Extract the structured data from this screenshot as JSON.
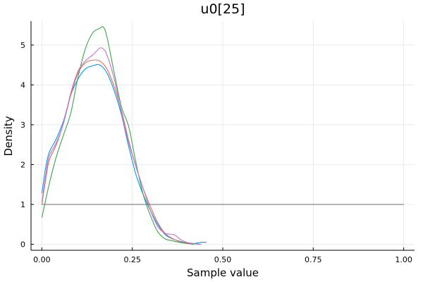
{
  "chart_data": {
    "type": "line",
    "title": "u0[25]",
    "xlabel": "Sample value",
    "ylabel": "Density",
    "xlim": [
      -0.03,
      1.03
    ],
    "ylim": [
      -0.15,
      5.6
    ],
    "grid": true,
    "legend": "none",
    "x_ticks": [
      0.0,
      0.25,
      0.5,
      0.75,
      1.0
    ],
    "x_tick_labels": [
      "0.00",
      "0.25",
      "0.50",
      "0.75",
      "1.00"
    ],
    "y_ticks": [
      0,
      1,
      2,
      3,
      4,
      5
    ],
    "y_tick_labels": [
      "0",
      "1",
      "2",
      "3",
      "4",
      "5"
    ],
    "series": [
      {
        "color": "#009AFA",
        "x": [
          0.0,
          0.01,
          0.02,
          0.04,
          0.06,
          0.08,
          0.1,
          0.12,
          0.14,
          0.16,
          0.18,
          0.2,
          0.22,
          0.24,
          0.26,
          0.28,
          0.3,
          0.32,
          0.34,
          0.36,
          0.38,
          0.4,
          0.42,
          0.44,
          0.455
        ],
        "y": [
          1.28,
          1.9,
          2.3,
          2.65,
          3.1,
          3.75,
          4.15,
          4.4,
          4.48,
          4.5,
          4.3,
          3.85,
          3.25,
          2.45,
          1.75,
          1.25,
          0.85,
          0.5,
          0.25,
          0.14,
          0.08,
          0.04,
          0.02,
          0.05,
          0.05
        ]
      },
      {
        "color": "#E36F47",
        "x": [
          0.0,
          0.01,
          0.02,
          0.04,
          0.06,
          0.08,
          0.1,
          0.12,
          0.14,
          0.16,
          0.18,
          0.2,
          0.22,
          0.24,
          0.26,
          0.28,
          0.3,
          0.32,
          0.34,
          0.36,
          0.38,
          0.4,
          0.42,
          0.44
        ],
        "y": [
          1.0,
          1.6,
          2.1,
          2.5,
          3.05,
          3.75,
          4.3,
          4.55,
          4.62,
          4.6,
          4.4,
          3.95,
          3.35,
          2.6,
          1.95,
          1.4,
          0.95,
          0.55,
          0.28,
          0.15,
          0.07,
          0.03,
          0.01,
          0.0
        ]
      },
      {
        "color": "#3EA44E",
        "x": [
          0.0,
          0.02,
          0.04,
          0.06,
          0.08,
          0.1,
          0.12,
          0.14,
          0.16,
          0.17,
          0.18,
          0.2,
          0.22,
          0.24,
          0.26,
          0.28,
          0.3,
          0.32,
          0.34,
          0.36,
          0.38,
          0.4,
          0.42
        ],
        "y": [
          0.67,
          1.5,
          2.2,
          2.75,
          3.3,
          4.2,
          4.9,
          5.3,
          5.42,
          5.45,
          5.2,
          4.3,
          3.45,
          2.95,
          2.05,
          1.25,
          0.72,
          0.32,
          0.14,
          0.09,
          0.05,
          0.02,
          0.0
        ]
      },
      {
        "color": "#C271D2",
        "x": [
          0.0,
          0.01,
          0.02,
          0.04,
          0.06,
          0.08,
          0.1,
          0.12,
          0.14,
          0.16,
          0.17,
          0.18,
          0.2,
          0.22,
          0.24,
          0.26,
          0.28,
          0.3,
          0.32,
          0.34,
          0.36,
          0.37,
          0.38,
          0.4,
          0.42,
          0.44
        ],
        "y": [
          1.05,
          1.7,
          2.2,
          2.55,
          3.05,
          3.8,
          4.35,
          4.6,
          4.75,
          4.92,
          4.9,
          4.75,
          4.15,
          3.3,
          2.55,
          1.95,
          1.4,
          0.85,
          0.45,
          0.28,
          0.25,
          0.22,
          0.14,
          0.05,
          0.02,
          0.0
        ]
      },
      {
        "color": "#696969",
        "x": [
          0.0,
          1.0
        ],
        "y": [
          1.0,
          1.0
        ]
      }
    ]
  }
}
